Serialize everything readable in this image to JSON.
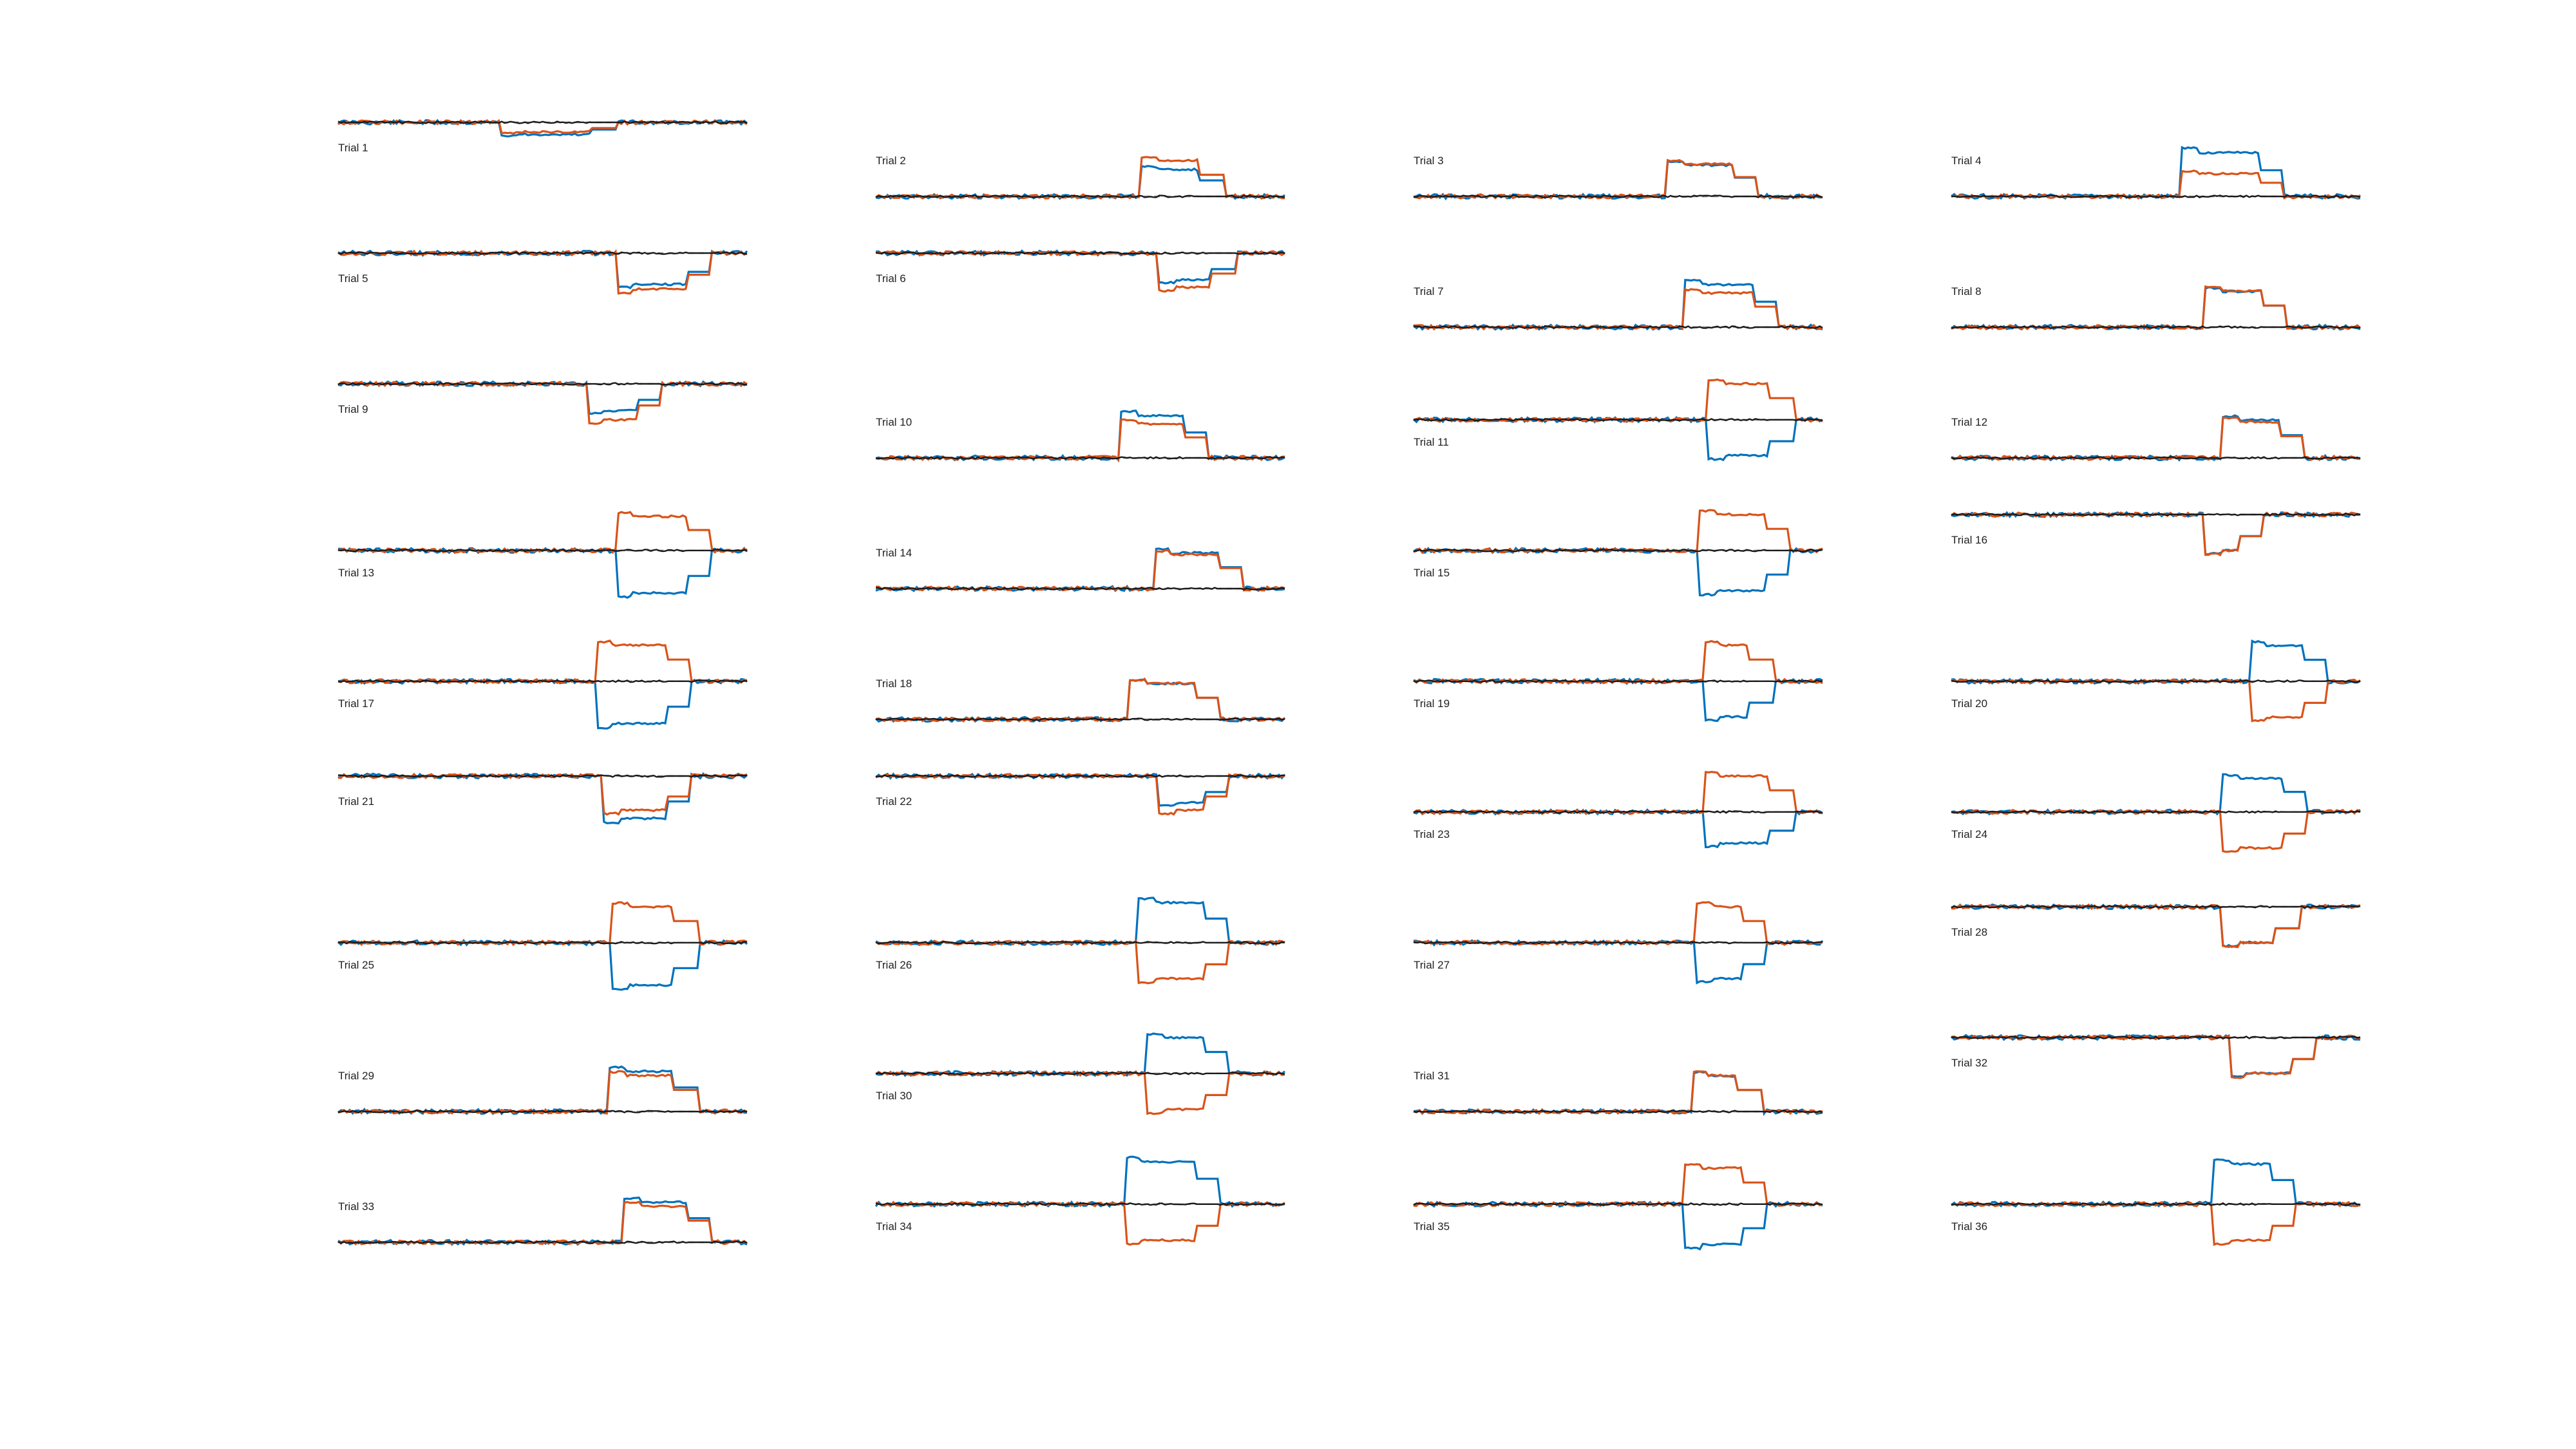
{
  "figure": {
    "colors": {
      "blue": "#0072BD",
      "orange": "#D95319",
      "black": "#1a1a1a",
      "baseline": "#8c8c8c"
    }
  },
  "chart_data": [
    {
      "type": "line",
      "label": "Trial 1",
      "segments": [
        [
          0.4,
          0.46,
          0.25
        ],
        [
          0.57,
          0.62,
          0.27
        ],
        [
          0.7,
          0.87,
          0.65
        ],
        [
          0.88,
          1.0,
          0
        ]
      ],
      "baseline_pos": "top"
    },
    {
      "type": "line",
      "label": "Trial 2",
      "segments": [
        [
          0.65,
          0.66,
          0.95
        ],
        [
          0.66,
          0.79,
          0.6
        ],
        [
          0.8,
          1.0,
          0
        ]
      ],
      "baseline_pos": "bottom"
    },
    {
      "type": "line",
      "label": "Trial 3",
      "segments": [
        [
          0.62,
          0.63,
          0.85
        ],
        [
          0.63,
          0.78,
          0.7
        ],
        [
          0.8,
          1.0,
          0
        ]
      ],
      "baseline_pos": "bottom"
    },
    {
      "type": "line",
      "label": "Trial 4",
      "segments": [
        [
          0.56,
          0.57,
          0.6
        ],
        [
          0.57,
          0.75,
          0.98
        ],
        [
          0.76,
          1.0,
          0
        ]
      ],
      "baseline_pos": "bottom"
    },
    {
      "type": "line",
      "label": "Trial 5",
      "segments": [
        [
          0.68,
          0.69,
          0.95
        ],
        [
          0.69,
          0.85,
          0.7
        ],
        [
          0.85,
          1.0,
          0
        ]
      ],
      "baseline_pos": "top"
    },
    {
      "type": "line",
      "label": "Trial 6",
      "segments": [
        [
          0.69,
          0.7,
          0.9
        ],
        [
          0.7,
          0.82,
          0.6
        ],
        [
          0.83,
          1.0,
          0
        ]
      ],
      "baseline_pos": "top"
    },
    {
      "type": "line",
      "label": "Trial 7",
      "segments": [
        [
          0.66,
          0.67,
          0.9
        ],
        [
          0.67,
          0.83,
          0.95
        ],
        [
          0.84,
          1.0,
          0
        ]
      ],
      "baseline_pos": "bottom"
    },
    {
      "type": "line",
      "label": "Trial 8",
      "segments": [
        [
          0.62,
          0.63,
          0.95
        ],
        [
          0.63,
          0.76,
          0.8
        ],
        [
          0.8,
          1.0,
          0
        ]
      ],
      "baseline_pos": "bottom"
    },
    {
      "type": "line",
      "label": "Trial 9",
      "segments": [
        [
          0.61,
          0.62,
          0.95
        ],
        [
          0.62,
          0.73,
          0.6
        ],
        [
          0.76,
          1.0,
          0
        ]
      ],
      "baseline_pos": "top"
    },
    {
      "type": "line",
      "label": "Trial 10",
      "segments": [
        [
          0.6,
          0.61,
          0.9
        ],
        [
          0.61,
          0.75,
          0.95
        ],
        [
          0.78,
          1.0,
          0
        ]
      ],
      "baseline_pos": "bottom"
    },
    {
      "type": "line",
      "label": "Trial 11",
      "segments": [
        [
          0.72,
          0.73,
          0.95
        ],
        [
          0.73,
          0.87,
          0.8
        ],
        [
          0.92,
          1.0,
          0
        ]
      ],
      "baseline_pos": "mid"
    },
    {
      "type": "line",
      "label": "Trial 12",
      "segments": [
        [
          0.66,
          0.67,
          0.95
        ],
        [
          0.67,
          0.8,
          0.85
        ],
        [
          0.85,
          1.0,
          0
        ]
      ],
      "baseline_pos": "bottom"
    },
    {
      "type": "line",
      "label": "Trial 13",
      "segments": [
        [
          0.68,
          0.69,
          0.9
        ],
        [
          0.69,
          0.85,
          0.95
        ],
        [
          0.9,
          1.0,
          0
        ]
      ],
      "baseline_pos": "mid"
    },
    {
      "type": "line",
      "label": "Trial 14",
      "segments": [
        [
          0.68,
          0.69,
          0.9
        ],
        [
          0.69,
          0.84,
          0.8
        ],
        [
          0.9,
          1.0,
          0
        ]
      ],
      "baseline_pos": "bottom"
    },
    {
      "type": "line",
      "label": "Trial 15",
      "segments": [
        [
          0.7,
          0.71,
          0.95
        ],
        [
          0.71,
          0.86,
          0.9
        ],
        [
          0.86,
          1.0,
          0
        ]
      ],
      "baseline_pos": "mid"
    },
    {
      "type": "line",
      "label": "Trial 16",
      "segments": [
        [
          0.62,
          0.63,
          0.95
        ],
        [
          0.63,
          0.7,
          0.8
        ],
        [
          0.73,
          1.0,
          0
        ]
      ],
      "baseline_pos": "top"
    },
    {
      "type": "line",
      "label": "Trial 17",
      "segments": [
        [
          0.63,
          0.64,
          0.95
        ],
        [
          0.64,
          0.8,
          0.95
        ],
        [
          0.8,
          1.0,
          0
        ]
      ],
      "baseline_pos": "mid"
    },
    {
      "type": "line",
      "label": "Trial 18",
      "segments": [
        [
          0.62,
          0.63,
          0.95
        ],
        [
          0.63,
          0.78,
          0.8
        ],
        [
          0.8,
          1.0,
          0
        ]
      ],
      "baseline_pos": "bottom"
    },
    {
      "type": "line",
      "label": "Trial 19",
      "segments": [
        [
          0.71,
          0.72,
          0.95
        ],
        [
          0.72,
          0.82,
          0.8
        ],
        [
          0.87,
          1.0,
          0
        ]
      ],
      "baseline_pos": "mid"
    },
    {
      "type": "line",
      "label": "Trial 20",
      "segments": [
        [
          0.73,
          0.74,
          0.95
        ],
        [
          0.74,
          0.86,
          0.8
        ],
        [
          0.88,
          1.0,
          0
        ]
      ],
      "baseline_pos": "mid"
    },
    {
      "type": "line",
      "label": "Trial 21",
      "segments": [
        [
          0.65,
          0.66,
          0.9
        ],
        [
          0.66,
          0.8,
          0.95
        ],
        [
          0.86,
          1.0,
          0
        ]
      ],
      "baseline_pos": "top"
    },
    {
      "type": "line",
      "label": "Trial 22",
      "segments": [
        [
          0.69,
          0.7,
          0.9
        ],
        [
          0.7,
          0.8,
          0.6
        ],
        [
          0.83,
          1.0,
          0
        ]
      ],
      "baseline_pos": "top"
    },
    {
      "type": "line",
      "label": "Trial 23",
      "segments": [
        [
          0.71,
          0.72,
          0.95
        ],
        [
          0.72,
          0.87,
          0.7
        ],
        [
          0.87,
          1.0,
          0
        ]
      ],
      "baseline_pos": "mid"
    },
    {
      "type": "line",
      "label": "Trial 24",
      "segments": [
        [
          0.66,
          0.67,
          0.95
        ],
        [
          0.67,
          0.81,
          0.75
        ],
        [
          0.85,
          1.0,
          0
        ]
      ],
      "baseline_pos": "mid"
    },
    {
      "type": "line",
      "label": "Trial 25",
      "segments": [
        [
          0.67,
          0.68,
          0.95
        ],
        [
          0.68,
          0.82,
          0.95
        ],
        [
          0.85,
          1.0,
          0
        ]
      ],
      "baseline_pos": "mid"
    },
    {
      "type": "line",
      "label": "Trial 26",
      "segments": [
        [
          0.64,
          0.65,
          0.95
        ],
        [
          0.65,
          0.8,
          0.9
        ],
        [
          0.82,
          1.0,
          0
        ]
      ],
      "baseline_pos": "mid"
    },
    {
      "type": "line",
      "label": "Trial 27",
      "segments": [
        [
          0.69,
          0.7,
          0.95
        ],
        [
          0.7,
          0.8,
          0.8
        ],
        [
          0.82,
          1.0,
          0
        ]
      ],
      "baseline_pos": "mid"
    },
    {
      "type": "line",
      "label": "Trial 28",
      "segments": [
        [
          0.66,
          0.67,
          0.95
        ],
        [
          0.67,
          0.79,
          0.8
        ],
        [
          0.84,
          1.0,
          0
        ]
      ],
      "baseline_pos": "top"
    },
    {
      "type": "line",
      "label": "Trial 29",
      "segments": [
        [
          0.66,
          0.67,
          0.95
        ],
        [
          0.67,
          0.82,
          0.9
        ],
        [
          0.86,
          1.0,
          0
        ]
      ],
      "baseline_pos": "bottom"
    },
    {
      "type": "line",
      "label": "Trial 30",
      "segments": [
        [
          0.66,
          0.67,
          0.95
        ],
        [
          0.67,
          0.8,
          0.8
        ],
        [
          0.88,
          1.0,
          0
        ]
      ],
      "baseline_pos": "mid"
    },
    {
      "type": "line",
      "label": "Trial 31",
      "segments": [
        [
          0.68,
          0.69,
          0.95
        ],
        [
          0.69,
          0.79,
          0.8
        ],
        [
          0.9,
          1.0,
          0
        ]
      ],
      "baseline_pos": "bottom"
    },
    {
      "type": "line",
      "label": "Trial 32",
      "segments": [
        [
          0.68,
          0.69,
          0.95
        ],
        [
          0.69,
          0.83,
          0.8
        ],
        [
          0.89,
          1.0,
          0
        ]
      ],
      "baseline_pos": "top"
    },
    {
      "type": "line",
      "label": "Trial 33",
      "segments": [
        [
          0.7,
          0.71,
          0.95
        ],
        [
          0.71,
          0.85,
          0.9
        ],
        [
          0.86,
          1.0,
          0
        ]
      ],
      "baseline_pos": "bottom"
    },
    {
      "type": "line",
      "label": "Trial 34",
      "segments": [
        [
          0.61,
          0.62,
          0.95
        ],
        [
          0.62,
          0.78,
          0.95
        ],
        [
          0.79,
          1.0,
          0
        ]
      ],
      "baseline_pos": "mid"
    },
    {
      "type": "line",
      "label": "Trial 35",
      "segments": [
        [
          0.66,
          0.67,
          0.95
        ],
        [
          0.67,
          0.8,
          0.9
        ],
        [
          0.83,
          1.0,
          0
        ]
      ],
      "baseline_pos": "mid"
    },
    {
      "type": "line",
      "label": "Trial 36",
      "segments": [
        [
          0.64,
          0.65,
          0.95
        ],
        [
          0.65,
          0.78,
          0.9
        ],
        [
          0.83,
          1.0,
          0
        ]
      ],
      "baseline_pos": "mid"
    }
  ]
}
